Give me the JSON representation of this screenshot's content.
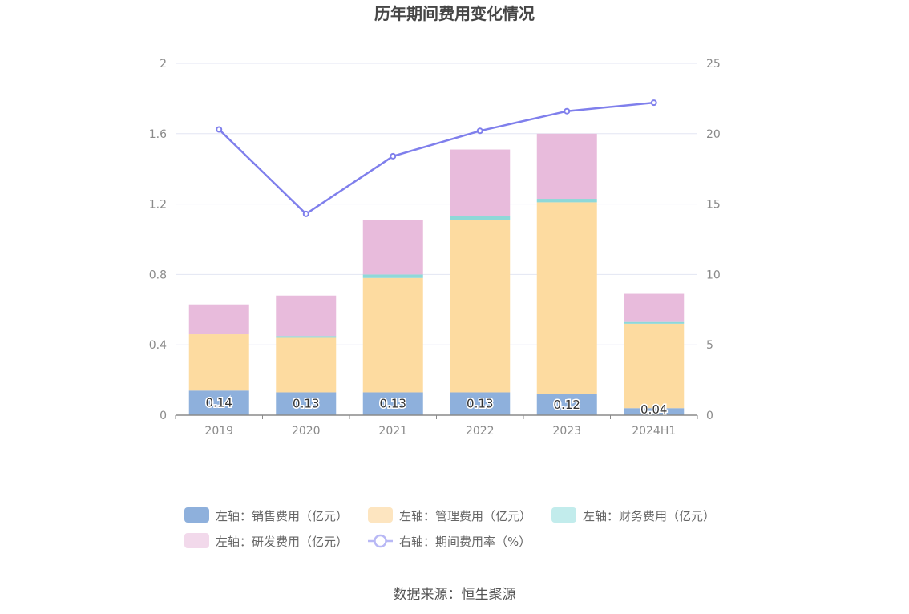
{
  "chart_data": {
    "type": "bar",
    "title": "历年期间费用变化情况",
    "categories": [
      "2019",
      "2020",
      "2021",
      "2022",
      "2023",
      "2024H1"
    ],
    "stacked": true,
    "series": [
      {
        "name": "左轴：销售费用（亿元）",
        "axis": "left",
        "type": "bar",
        "color": "#8eb0dc",
        "values": [
          0.14,
          0.13,
          0.13,
          0.13,
          0.12,
          0.04
        ],
        "labels": [
          "0.14",
          "0.13",
          "0.13",
          "0.13",
          "0.12",
          "0.04"
        ]
      },
      {
        "name": "左轴：管理费用（亿元）",
        "axis": "left",
        "type": "bar",
        "color": "#fddba0",
        "values": [
          0.32,
          0.31,
          0.65,
          0.98,
          1.09,
          0.48
        ]
      },
      {
        "name": "左轴：财务费用（亿元）",
        "axis": "left",
        "type": "bar",
        "color": "#8ed8d8",
        "values": [
          0.0,
          0.01,
          0.02,
          0.02,
          0.02,
          0.01
        ]
      },
      {
        "name": "左轴：研发费用（亿元）",
        "axis": "left",
        "type": "bar",
        "color": "#e8bbdc",
        "values": [
          0.17,
          0.23,
          0.31,
          0.38,
          0.37,
          0.16
        ]
      },
      {
        "name": "右轴：期间费用率（%）",
        "axis": "right",
        "type": "line",
        "color": "#7f7fec",
        "values": [
          20.3,
          14.3,
          18.4,
          20.2,
          21.6,
          22.2
        ]
      }
    ],
    "y_left": {
      "range": [
        0,
        2
      ],
      "ticks": [
        "0",
        "0.4",
        "0.8",
        "1.2",
        "1.6",
        "2"
      ]
    },
    "y_right": {
      "range": [
        0,
        25
      ],
      "ticks": [
        "0",
        "5",
        "10",
        "15",
        "20",
        "25"
      ]
    },
    "grid": true,
    "legend_position": "bottom"
  },
  "legend_colors": [
    "#8eb0dc",
    "#fde5c0",
    "#c2ecec",
    "#f2d9eb",
    "#b8b8f5"
  ],
  "source": "数据来源：恒生聚源"
}
